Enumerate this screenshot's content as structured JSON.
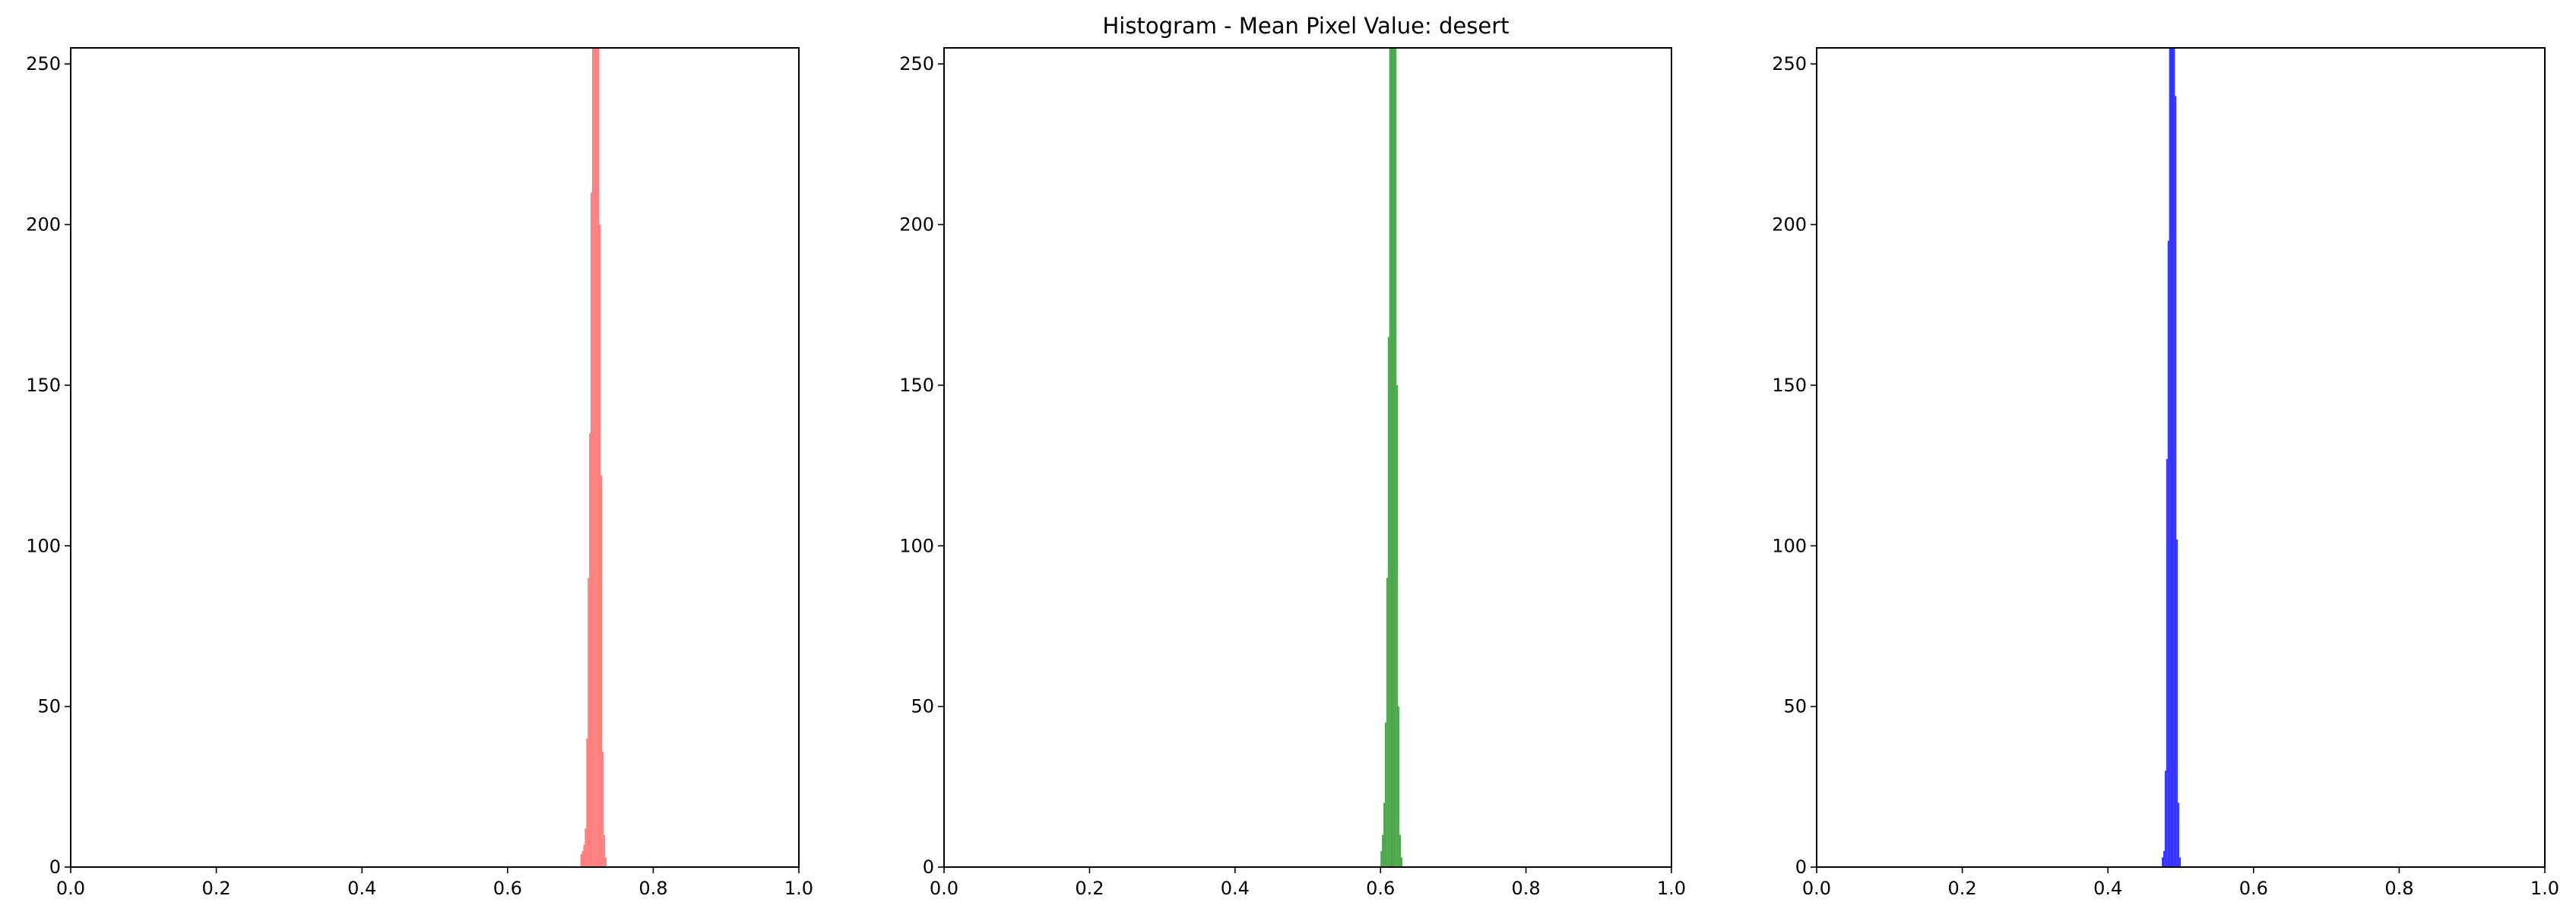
{
  "title": "Histogram - Mean Pixel Value:  desert",
  "chart_data": [
    {
      "type": "bar",
      "channel": "red",
      "color": "#ff0000",
      "alpha": 0.5,
      "xlim": [
        0,
        1
      ],
      "ylim": [
        0,
        255
      ],
      "xticks": [
        "0.0",
        "0.2",
        "0.4",
        "0.6",
        "0.8",
        "1.0"
      ],
      "yticks": [
        "0",
        "50",
        "100",
        "150",
        "200",
        "250"
      ],
      "bin_width": 0.002,
      "bins": [
        [
          0.7,
          4
        ],
        [
          0.702,
          5
        ],
        [
          0.704,
          7
        ],
        [
          0.706,
          12
        ],
        [
          0.708,
          40
        ],
        [
          0.71,
          90
        ],
        [
          0.712,
          135
        ],
        [
          0.714,
          210
        ],
        [
          0.716,
          255
        ],
        [
          0.718,
          255
        ],
        [
          0.72,
          255
        ],
        [
          0.722,
          255
        ],
        [
          0.724,
          255
        ],
        [
          0.726,
          200
        ],
        [
          0.728,
          122
        ],
        [
          0.73,
          36
        ],
        [
          0.732,
          10
        ],
        [
          0.734,
          3
        ]
      ]
    },
    {
      "type": "bar",
      "channel": "green",
      "color": "#008000",
      "alpha": 0.7,
      "xlim": [
        0,
        1
      ],
      "ylim": [
        0,
        255
      ],
      "xticks": [
        "0.0",
        "0.2",
        "0.4",
        "0.6",
        "0.8",
        "1.0"
      ],
      "yticks": [
        "0",
        "50",
        "100",
        "150",
        "200",
        "250"
      ],
      "bin_width": 0.002,
      "bins": [
        [
          0.6,
          5
        ],
        [
          0.602,
          10
        ],
        [
          0.604,
          20
        ],
        [
          0.606,
          45
        ],
        [
          0.608,
          90
        ],
        [
          0.61,
          165
        ],
        [
          0.612,
          255
        ],
        [
          0.614,
          255
        ],
        [
          0.616,
          255
        ],
        [
          0.618,
          255
        ],
        [
          0.62,
          255
        ],
        [
          0.622,
          150
        ],
        [
          0.624,
          50
        ],
        [
          0.626,
          10
        ],
        [
          0.628,
          3
        ]
      ]
    },
    {
      "type": "bar",
      "channel": "blue",
      "color": "#0000ff",
      "alpha": 0.8,
      "xlim": [
        0,
        1
      ],
      "ylim": [
        0,
        255
      ],
      "xticks": [
        "0.0",
        "0.2",
        "0.4",
        "0.6",
        "0.8",
        "1.0"
      ],
      "yticks": [
        "0",
        "50",
        "100",
        "150",
        "200",
        "250"
      ],
      "bin_width": 0.002,
      "bins": [
        [
          0.474,
          3
        ],
        [
          0.476,
          5
        ],
        [
          0.478,
          30
        ],
        [
          0.48,
          127
        ],
        [
          0.482,
          195
        ],
        [
          0.484,
          255
        ],
        [
          0.486,
          255
        ],
        [
          0.488,
          255
        ],
        [
          0.49,
          255
        ],
        [
          0.492,
          240
        ],
        [
          0.494,
          102
        ],
        [
          0.496,
          20
        ],
        [
          0.498,
          3
        ]
      ]
    }
  ]
}
